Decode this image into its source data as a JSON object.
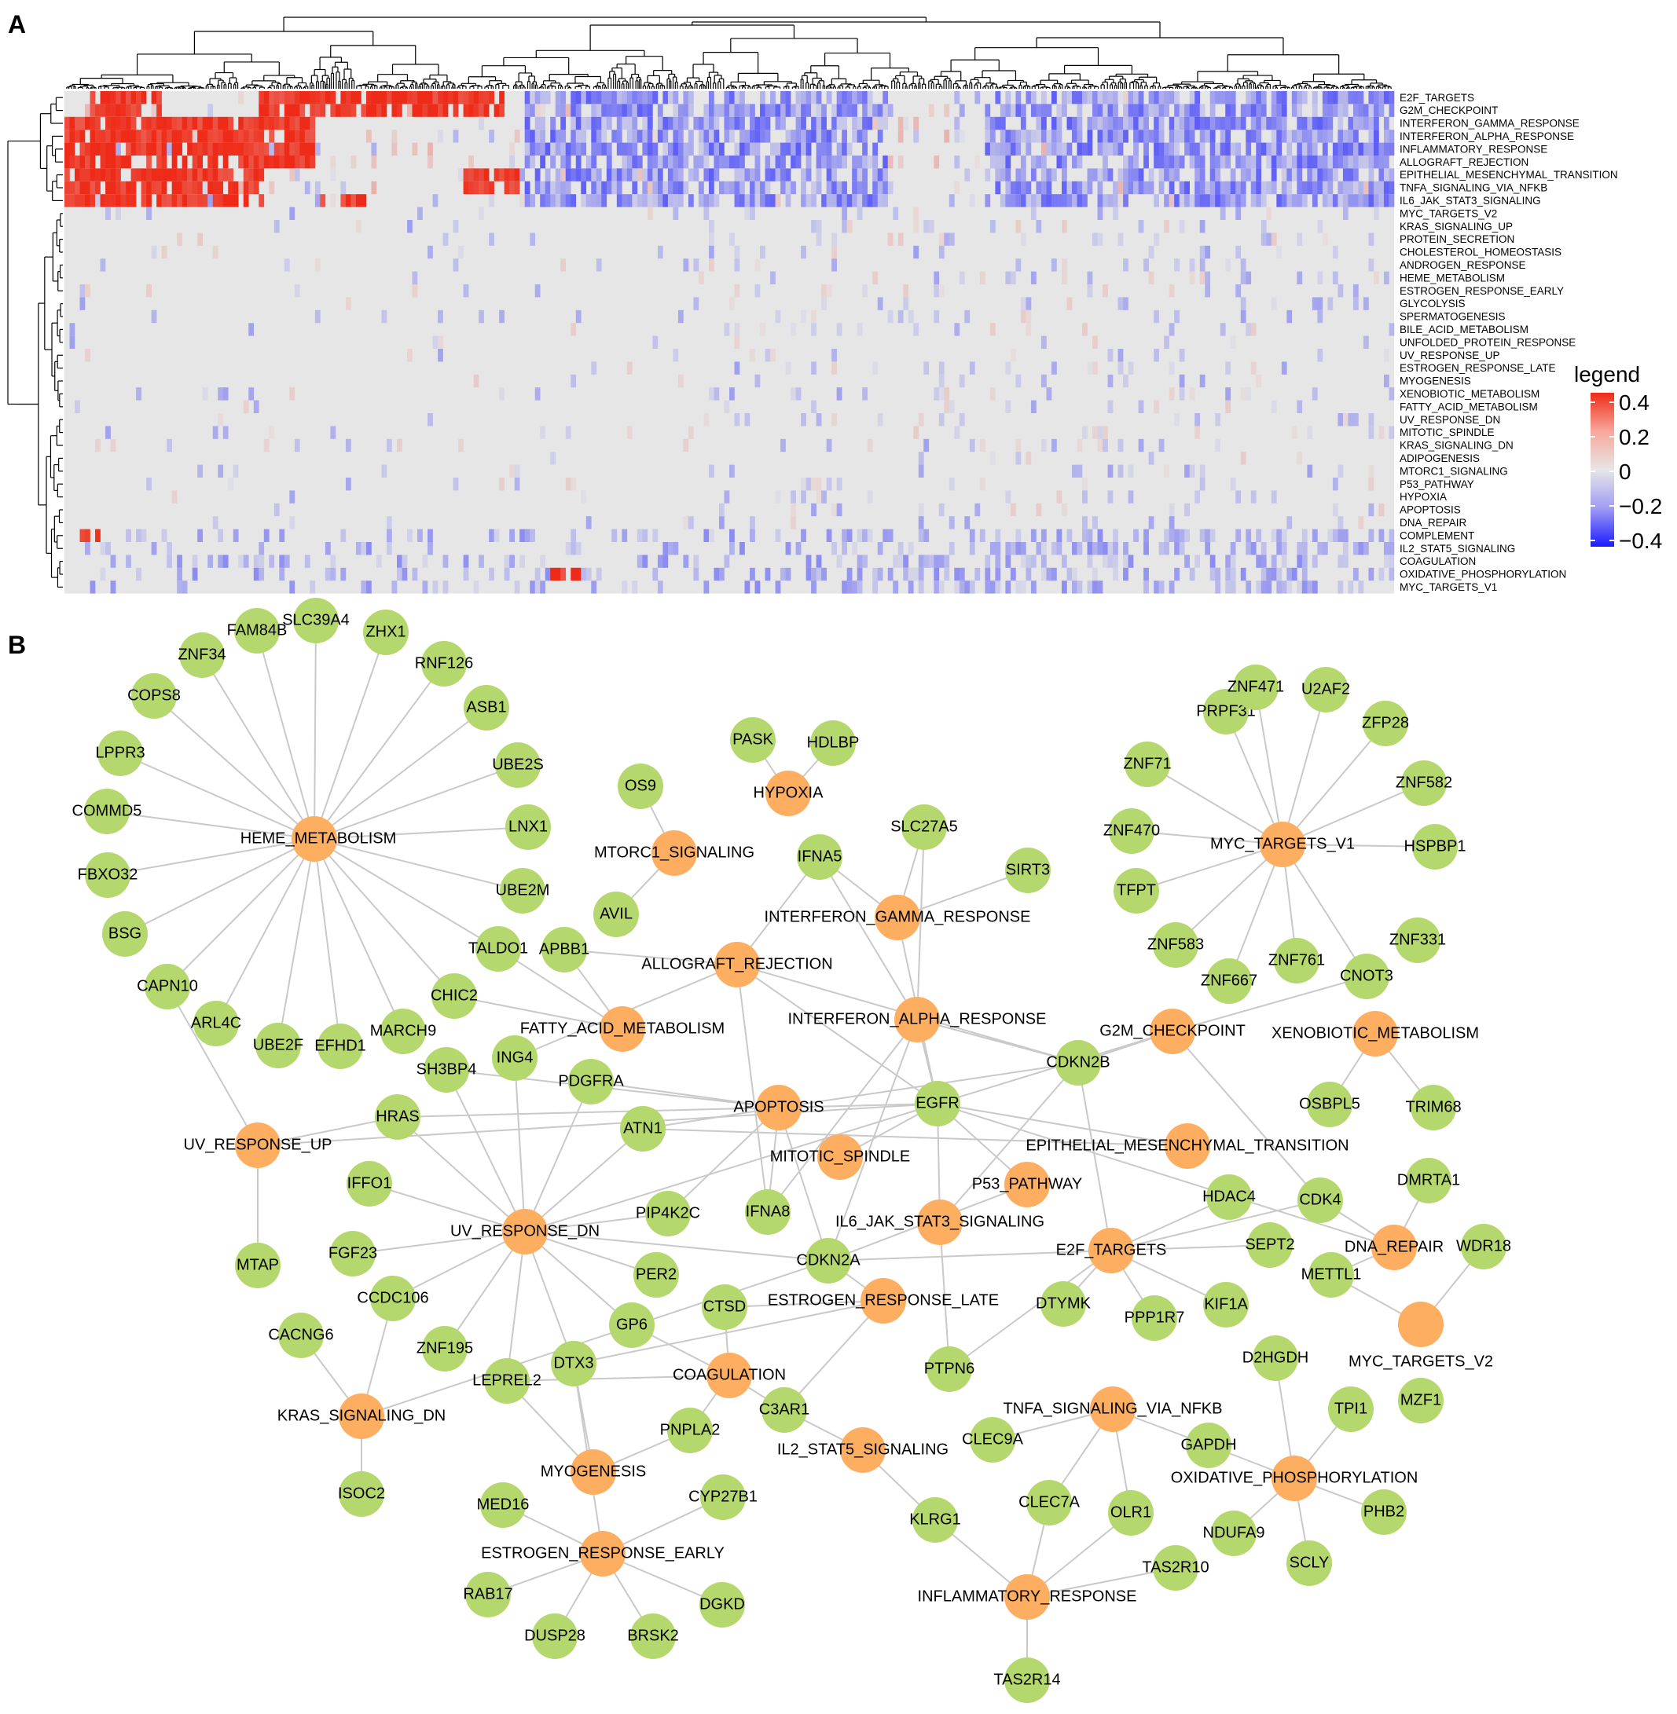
{
  "panels": {
    "a": "A",
    "b": "B"
  },
  "heatmap": {
    "rows": [
      "E2F_TARGETS",
      "G2M_CHECKPOINT",
      "INTERFERON_GAMMA_RESPONSE",
      "INTERFERON_ALPHA_RESPONSE",
      "INFLAMMATORY_RESPONSE",
      "ALLOGRAFT_REJECTION",
      "EPITHELIAL_MESENCHYMAL_TRANSITION",
      "TNFA_SIGNALING_VIA_NFKB",
      "IL6_JAK_STAT3_SIGNALING",
      "MYC_TARGETS_V2",
      "KRAS_SIGNALING_UP",
      "PROTEIN_SECRETION",
      "CHOLESTEROL_HOMEOSTASIS",
      "ANDROGEN_RESPONSE",
      "HEME_METABOLISM",
      "ESTROGEN_RESPONSE_EARLY",
      "GLYCOLYSIS",
      "SPERMATOGENESIS",
      "BILE_ACID_METABOLISM",
      "UNFOLDED_PROTEIN_RESPONSE",
      "UV_RESPONSE_UP",
      "ESTROGEN_RESPONSE_LATE",
      "MYOGENESIS",
      "XENOBIOTIC_METABOLISM",
      "FATTY_ACID_METABOLISM",
      "UV_RESPONSE_DN",
      "MITOTIC_SPINDLE",
      "KRAS_SIGNALING_DN",
      "ADIPOGENESIS",
      "MTORC1_SIGNALING",
      "P53_PATHWAY",
      "HYPOXIA",
      "APOPTOSIS",
      "DNA_REPAIR",
      "COMPLEMENT",
      "IL2_STAT5_SIGNALING",
      "COAGULATION",
      "OXIDATIVE_PHOSPHORYLATION",
      "MYC_TARGETS_V1"
    ],
    "legend": {
      "title": "legend",
      "ticks": [
        "0.4",
        "0.2",
        "0",
        "−0.2",
        "−0.4"
      ],
      "range": [
        -0.4,
        0.4
      ]
    },
    "colors": {
      "high": "#ee2b18",
      "mid": "#e6e6e6",
      "low": "#1a1aff"
    }
  },
  "network": {
    "colors": {
      "pathway": "#fdae61",
      "gene": "#b5d86e",
      "edge": "#c9c9c9"
    },
    "pathways": [
      "HEME_METABOLISM",
      "HYPOXIA",
      "MTORC1_SIGNALING",
      "INTERFERON_GAMMA_RESPONSE",
      "ALLOGRAFT_REJECTION",
      "FATTY_ACID_METABOLISM",
      "INTERFERON_ALPHA_RESPONSE",
      "MYC_TARGETS_V1",
      "G2M_CHECKPOINT",
      "XENOBIOTIC_METABOLISM",
      "APOPTOSIS",
      "UV_RESPONSE_UP",
      "MITOTIC_SPINDLE",
      "EPITHELIAL_MESENCHYMAL_TRANSITION",
      "P53_PATHWAY",
      "UV_RESPONSE_DN",
      "IL6_JAK_STAT3_SIGNALING",
      "E2F_TARGETS",
      "DNA_REPAIR",
      "ESTROGEN_RESPONSE_LATE",
      "MYC_TARGETS_V2",
      "COAGULATION",
      "KRAS_SIGNALING_DN",
      "TNFA_SIGNALING_VIA_NFKB",
      "IL2_STAT5_SIGNALING",
      "OXIDATIVE_PHOSPHORYLATION",
      "MYOGENESIS",
      "ESTROGEN_RESPONSE_EARLY",
      "INFLAMMATORY_RESPONSE"
    ],
    "genes": [
      "FAM84B",
      "SLC39A4",
      "ZHX1",
      "ZNF34",
      "RNF126",
      "COPS8",
      "ASB1",
      "LPPR3",
      "UBE2S",
      "COMMD5",
      "LNX1",
      "FBXO32",
      "UBE2M",
      "BSG",
      "CAPN10",
      "ARL4C",
      "UBE2F",
      "EFHD1",
      "MARCH9",
      "CHIC2",
      "TALDO1",
      "APBB1",
      "PASK",
      "HDLBP",
      "OS9",
      "IFNA5",
      "SLC27A5",
      "SIRT3",
      "AVIL",
      "PRPF31",
      "ZNF471",
      "U2AF2",
      "ZFP28",
      "ZNF71",
      "ZNF582",
      "ZNF470",
      "HSPBP1",
      "TFPT",
      "ZNF583",
      "ZNF761",
      "ZNF331",
      "ZNF667",
      "CNOT3",
      "CDKN2B",
      "SH3BP4",
      "ING4",
      "PDGFRA",
      "EGFR",
      "HRAS",
      "ATN1",
      "OSBPL5",
      "TRIM68",
      "IFFO1",
      "MTAP",
      "FGF23",
      "PIP4K2C",
      "IFNA8",
      "HDAC4",
      "CDK4",
      "DMRTA1",
      "PER2",
      "CDKN2A",
      "SEPT2",
      "WDR18",
      "CCDC106",
      "METTL1",
      "CACNG6",
      "ZNF195",
      "GP6",
      "CTSD",
      "DTYMK",
      "PPP1R7",
      "KIF1A",
      "LEPREL2",
      "DTX3",
      "PTPN6",
      "C3AR1",
      "D2HGDH",
      "TPI1",
      "MZF1",
      "CLEC9A",
      "GAPDH",
      "ISOC2",
      "PNPLA2",
      "CLEC7A",
      "OLR1",
      "MED16",
      "CYP27B1",
      "KLRG1",
      "NDUFA9",
      "PHB2",
      "SCLY",
      "TAS2R10",
      "RAB17",
      "DGKD",
      "DUSP28",
      "BRSK2",
      "TAS2R14"
    ]
  }
}
